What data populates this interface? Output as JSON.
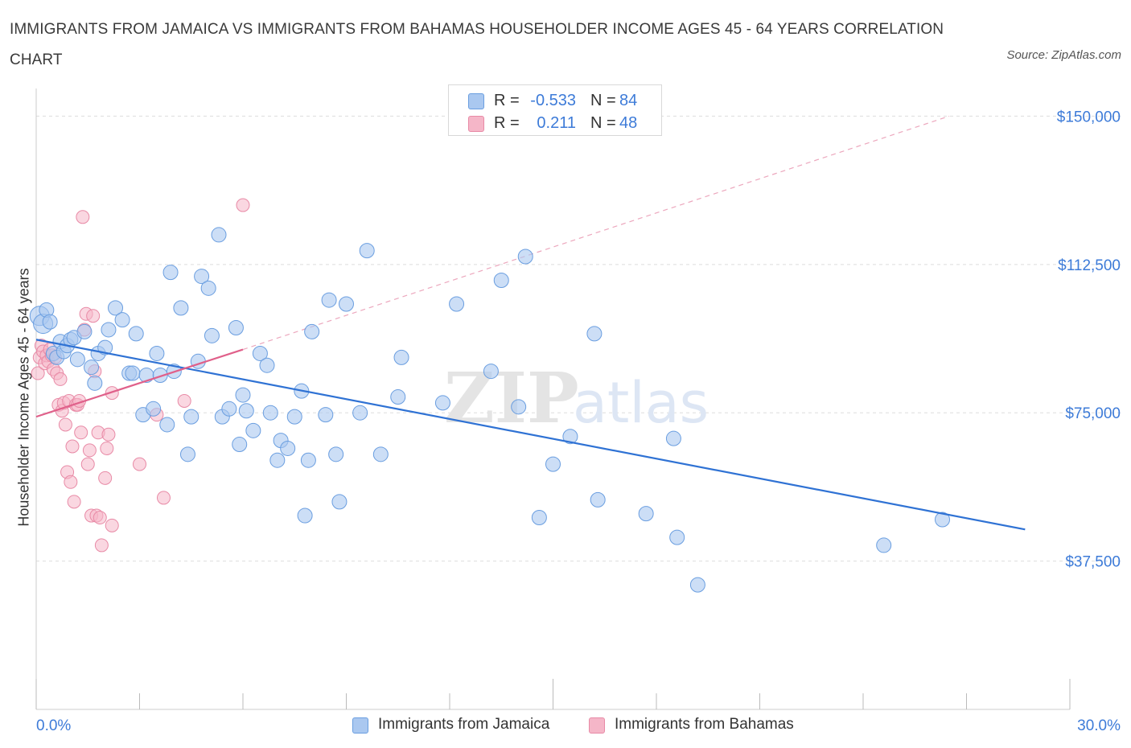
{
  "title": "IMMIGRANTS FROM JAMAICA VS IMMIGRANTS FROM BAHAMAS HOUSEHOLDER INCOME AGES 45 - 64 YEARS CORRELATION CHART",
  "source": "Source: ZipAtlas.com",
  "watermark": {
    "zip": "ZIP",
    "atlas": "atlas"
  },
  "legend_top": [
    {
      "r_label": "R =",
      "r_value": "-0.533",
      "n_label": "N =",
      "n_value": "84",
      "color": "#aac8f0"
    },
    {
      "r_label": "R =",
      "r_value": "0.211",
      "n_label": "N =",
      "n_value": "48",
      "color": "#f5b6c8"
    }
  ],
  "legend_bottom": [
    {
      "label": "Immigrants from Jamaica",
      "color": "#aac8f0"
    },
    {
      "label": "Immigrants from Bahamas",
      "color": "#f5b6c8"
    }
  ],
  "colors": {
    "jamaica_fill": "#aac8f0",
    "jamaica_stroke": "#6a9ee0",
    "jamaica_line": "#2f72d4",
    "bahamas_fill": "#f5b6c8",
    "bahamas_stroke": "#e88aa6",
    "bahamas_line": "#e0608a",
    "axis_text": "#3d7bd8",
    "grid": "#dddddd"
  },
  "chart_data": {
    "type": "scatter",
    "title": "IMMIGRANTS FROM JAMAICA VS IMMIGRANTS FROM BAHAMAS HOUSEHOLDER INCOME AGES 45 - 64 YEARS CORRELATION CHART",
    "xlabel": "",
    "ylabel": "Householder Income Ages 45 - 64 years",
    "xlim": [
      0,
      30
    ],
    "ylim": [
      0,
      157000
    ],
    "x_tick_labels": [
      {
        "value": 0,
        "label": "0.0%"
      },
      {
        "value": 30,
        "label": "30.0%"
      }
    ],
    "y_tick_labels": [
      {
        "value": 37500,
        "label": "$37,500"
      },
      {
        "value": 75000,
        "label": "$75,000"
      },
      {
        "value": 112500,
        "label": "$112,500"
      },
      {
        "value": 150000,
        "label": "$150,000"
      }
    ],
    "grid": true,
    "legend_position": "top-center",
    "series": [
      {
        "name": "Immigrants from Jamaica",
        "r": -0.533,
        "n": 84,
        "trend": {
          "x": [
            0.0,
            28.7
          ],
          "y": [
            93500,
            45500
          ],
          "style": "solid"
        },
        "points": [
          [
            0.1,
            99500
          ],
          [
            0.2,
            97500
          ],
          [
            0.3,
            101000
          ],
          [
            0.4,
            98000
          ],
          [
            0.5,
            90000
          ],
          [
            0.6,
            89000
          ],
          [
            0.7,
            93000
          ],
          [
            0.8,
            90500
          ],
          [
            0.9,
            92000
          ],
          [
            1.0,
            93500
          ],
          [
            1.1,
            94000
          ],
          [
            1.2,
            88500
          ],
          [
            1.4,
            95500
          ],
          [
            1.6,
            86500
          ],
          [
            1.7,
            82500
          ],
          [
            1.8,
            90000
          ],
          [
            2.0,
            91500
          ],
          [
            2.1,
            96000
          ],
          [
            2.3,
            101500
          ],
          [
            2.5,
            98500
          ],
          [
            2.7,
            85000
          ],
          [
            2.8,
            85000
          ],
          [
            2.9,
            95000
          ],
          [
            3.1,
            74500
          ],
          [
            3.2,
            84500
          ],
          [
            3.4,
            76000
          ],
          [
            3.5,
            90000
          ],
          [
            3.6,
            84500
          ],
          [
            3.8,
            72000
          ],
          [
            3.9,
            110500
          ],
          [
            4.0,
            85500
          ],
          [
            4.2,
            101500
          ],
          [
            4.4,
            64500
          ],
          [
            4.5,
            74000
          ],
          [
            4.7,
            88000
          ],
          [
            4.8,
            109500
          ],
          [
            5.0,
            106500
          ],
          [
            5.1,
            94500
          ],
          [
            5.3,
            120000
          ],
          [
            5.4,
            74000
          ],
          [
            5.6,
            76000
          ],
          [
            5.8,
            96500
          ],
          [
            5.9,
            67000
          ],
          [
            6.0,
            79500
          ],
          [
            6.1,
            75500
          ],
          [
            6.3,
            70500
          ],
          [
            6.5,
            90000
          ],
          [
            6.7,
            87000
          ],
          [
            6.8,
            75000
          ],
          [
            7.0,
            63000
          ],
          [
            7.1,
            68000
          ],
          [
            7.3,
            66000
          ],
          [
            7.5,
            74000
          ],
          [
            7.7,
            80500
          ],
          [
            7.8,
            49000
          ],
          [
            7.9,
            63000
          ],
          [
            8.0,
            95500
          ],
          [
            8.4,
            74500
          ],
          [
            8.5,
            103500
          ],
          [
            8.7,
            64500
          ],
          [
            8.8,
            52500
          ],
          [
            9.0,
            102500
          ],
          [
            9.4,
            75000
          ],
          [
            9.6,
            116000
          ],
          [
            10.0,
            64500
          ],
          [
            10.5,
            79000
          ],
          [
            10.6,
            89000
          ],
          [
            11.8,
            77500
          ],
          [
            12.2,
            102500
          ],
          [
            13.2,
            85500
          ],
          [
            13.5,
            108500
          ],
          [
            14.0,
            76500
          ],
          [
            14.2,
            114500
          ],
          [
            14.6,
            48500
          ],
          [
            15.0,
            62000
          ],
          [
            15.5,
            69000
          ],
          [
            16.2,
            95000
          ],
          [
            16.3,
            53000
          ],
          [
            17.7,
            49500
          ],
          [
            18.5,
            68500
          ],
          [
            18.6,
            43500
          ],
          [
            19.2,
            31500
          ],
          [
            24.6,
            41500
          ],
          [
            26.3,
            48000
          ]
        ]
      },
      {
        "name": "Immigrants from Bahamas",
        "r": 0.211,
        "n": 48,
        "trend": {
          "x": [
            0.0,
            6.0
          ],
          "y": [
            74000,
            91000
          ],
          "style": "solid",
          "extended": {
            "x": [
              6.0,
              26.5
            ],
            "y": [
              91000,
              150000
            ],
            "style": "dashed"
          }
        },
        "points": [
          [
            0.05,
            85000
          ],
          [
            0.1,
            89000
          ],
          [
            0.15,
            92000
          ],
          [
            0.2,
            90500
          ],
          [
            0.25,
            87500
          ],
          [
            0.3,
            89500
          ],
          [
            0.35,
            88000
          ],
          [
            0.4,
            91000
          ],
          [
            0.45,
            89500
          ],
          [
            0.5,
            86000
          ],
          [
            0.55,
            89000
          ],
          [
            0.6,
            85000
          ],
          [
            0.65,
            77000
          ],
          [
            0.7,
            83500
          ],
          [
            0.75,
            75500
          ],
          [
            0.8,
            77500
          ],
          [
            0.85,
            72000
          ],
          [
            0.9,
            60000
          ],
          [
            0.95,
            78000
          ],
          [
            1.0,
            57500
          ],
          [
            1.05,
            66500
          ],
          [
            1.1,
            52500
          ],
          [
            1.15,
            77000
          ],
          [
            1.2,
            77000
          ],
          [
            1.25,
            78000
          ],
          [
            1.3,
            70000
          ],
          [
            1.35,
            124500
          ],
          [
            1.4,
            96000
          ],
          [
            1.45,
            100000
          ],
          [
            1.5,
            62000
          ],
          [
            1.55,
            65500
          ],
          [
            1.6,
            49000
          ],
          [
            1.65,
            99500
          ],
          [
            1.7,
            85500
          ],
          [
            1.75,
            49000
          ],
          [
            1.8,
            70000
          ],
          [
            1.85,
            48500
          ],
          [
            1.9,
            41500
          ],
          [
            2.0,
            58500
          ],
          [
            2.05,
            66000
          ],
          [
            2.1,
            69500
          ],
          [
            2.2,
            80000
          ],
          [
            2.2,
            46500
          ],
          [
            3.0,
            62000
          ],
          [
            3.5,
            74500
          ],
          [
            3.7,
            53500
          ],
          [
            4.3,
            78000
          ],
          [
            6.0,
            127500
          ]
        ]
      }
    ]
  }
}
